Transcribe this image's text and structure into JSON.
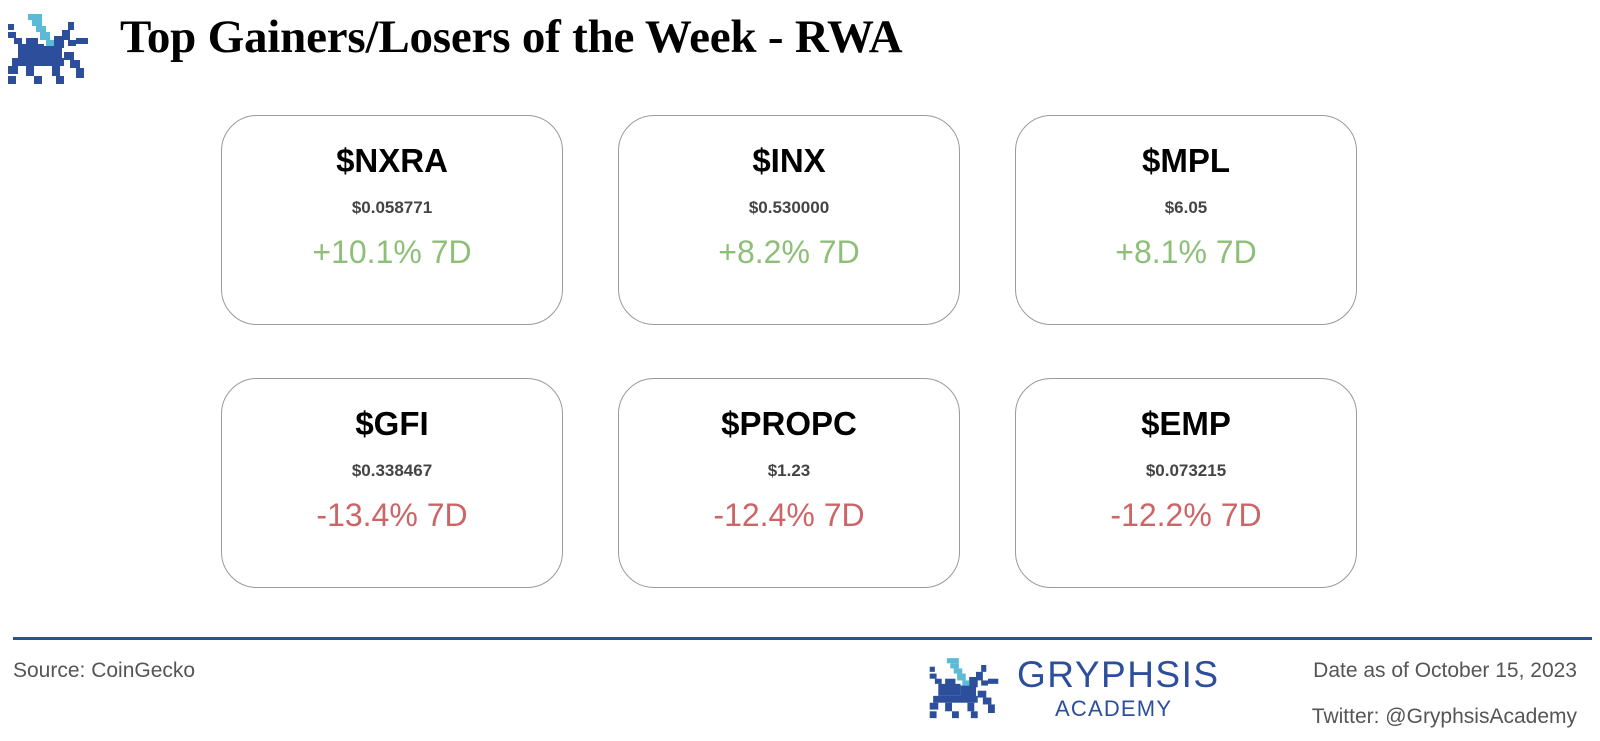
{
  "header": {
    "title": "Top Gainers/Losers of the Week - RWA",
    "logo_icon": "gryphon-logo-icon"
  },
  "colors": {
    "gain": "#8dbf78",
    "loss": "#cc6666",
    "brand": "#2d4f9b",
    "brand_light": "#5bbad5",
    "card_border": "#9a9a9a"
  },
  "cards": [
    {
      "ticker": "$NXRA",
      "price": "$0.058771",
      "change": "+10.1% 7D",
      "direction": "gain"
    },
    {
      "ticker": "$INX",
      "price": "$0.530000",
      "change": "+8.2% 7D",
      "direction": "gain"
    },
    {
      "ticker": "$MPL",
      "price": "$6.05",
      "change": "+8.1% 7D",
      "direction": "gain"
    },
    {
      "ticker": "$GFI",
      "price": "$0.338467",
      "change": "-13.4% 7D",
      "direction": "loss"
    },
    {
      "ticker": "$PROPC",
      "price": "$1.23",
      "change": "-12.4% 7D",
      "direction": "loss"
    },
    {
      "ticker": "$EMP",
      "price": "$0.073215",
      "change": "-12.2% 7D",
      "direction": "loss"
    }
  ],
  "footer": {
    "source": "Source: CoinGecko",
    "brand_name": "GRYPHSIS",
    "brand_sub": "ACADEMY",
    "date": "Date as of October 15, 2023",
    "twitter": "Twitter: @GryphsisAcademy"
  }
}
